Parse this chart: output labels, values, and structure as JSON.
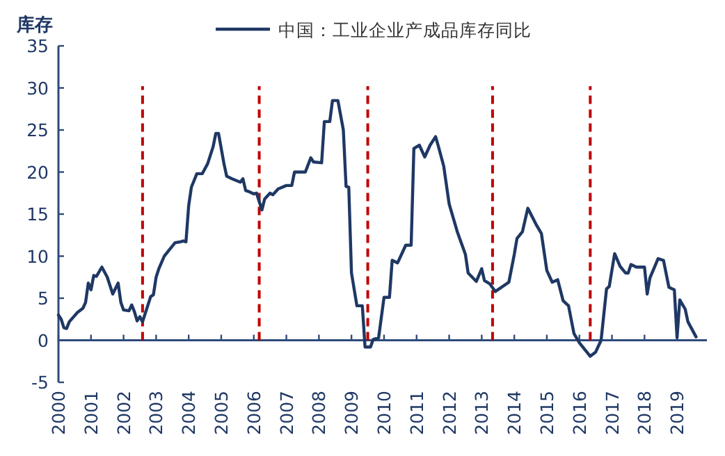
{
  "chart_data": {
    "type": "line",
    "ylabel": "库存",
    "legend": "top",
    "x": [
      "2000-01",
      "2000-02",
      "2000-03",
      "2000-04",
      "2000-05",
      "2000-08",
      "2000-10",
      "2000-11",
      "2000-12",
      "2001-01",
      "2001-02",
      "2001-03",
      "2001-05",
      "2001-07",
      "2001-08",
      "2001-09",
      "2001-11",
      "2001-12",
      "2002-01",
      "2002-03",
      "2002-04",
      "2002-05",
      "2002-06",
      "2002-07",
      "2002-08",
      "2002-09",
      "2002-11",
      "2002-12",
      "2003-01",
      "2003-02",
      "2003-04",
      "2003-05",
      "2003-07",
      "2003-08",
      "2003-10",
      "2003-11",
      "2003-12",
      "2004-01",
      "2004-02",
      "2004-04",
      "2004-06",
      "2004-08",
      "2004-10",
      "2004-11",
      "2004-12",
      "2005-02",
      "2005-03",
      "2005-05",
      "2005-08",
      "2005-09",
      "2005-10",
      "2005-11",
      "2006-01",
      "2006-02",
      "2006-04",
      "2006-05",
      "2006-07",
      "2006-08",
      "2006-10",
      "2007-01",
      "2007-03",
      "2007-04",
      "2007-08",
      "2007-10",
      "2007-11",
      "2008-02",
      "2008-03",
      "2008-05",
      "2008-06",
      "2008-08",
      "2008-10",
      "2008-11",
      "2008-12",
      "2009-01",
      "2009-03",
      "2009-05",
      "2009-06",
      "2009-08",
      "2009-09",
      "2009-11",
      "2010-01",
      "2010-03",
      "2010-04",
      "2010-06",
      "2010-09",
      "2010-11",
      "2010-12",
      "2011-02",
      "2011-04",
      "2011-06",
      "2011-08",
      "2011-09",
      "2011-11",
      "2012-01",
      "2012-04",
      "2012-07",
      "2012-08",
      "2012-11",
      "2013-01",
      "2013-02",
      "2013-04",
      "2013-06",
      "2013-11",
      "2014-01",
      "2014-02",
      "2014-04",
      "2014-06",
      "2014-09",
      "2014-11",
      "2015-01",
      "2015-03",
      "2015-05",
      "2015-07",
      "2015-09",
      "2015-11",
      "2016-01",
      "2016-03",
      "2016-05",
      "2016-07",
      "2016-09",
      "2016-11",
      "2016-12",
      "2017-02",
      "2017-04",
      "2017-06",
      "2017-07",
      "2017-08",
      "2017-10",
      "2018-01",
      "2018-02",
      "2018-03",
      "2018-06",
      "2018-08",
      "2018-10",
      "2018-12",
      "2019-01",
      "2019-02",
      "2019-04",
      "2019-05",
      "2019-08"
    ],
    "series": [
      {
        "name": "中国：工业企业产成品库存同比",
        "color": "#1f3864",
        "values": [
          3.0,
          2.5,
          1.5,
          1.4,
          2.2,
          3.3,
          3.8,
          4.5,
          6.8,
          6.0,
          7.7,
          7.6,
          8.7,
          7.5,
          6.5,
          5.5,
          6.8,
          4.5,
          3.6,
          3.5,
          4.2,
          3.4,
          2.3,
          2.8,
          2.2,
          3.2,
          5.2,
          5.4,
          7.5,
          8.5,
          10.0,
          10.4,
          11.2,
          11.6,
          11.7,
          11.8,
          11.7,
          16.0,
          18.2,
          19.8,
          19.8,
          21.0,
          23.0,
          24.6,
          24.6,
          21.0,
          19.5,
          19.2,
          18.8,
          19.2,
          17.8,
          17.7,
          17.4,
          17.5,
          15.5,
          16.8,
          17.5,
          17.3,
          18.0,
          18.4,
          18.4,
          20.0,
          20.0,
          21.7,
          21.2,
          21.1,
          26.0,
          26.0,
          28.5,
          28.5,
          25.0,
          18.3,
          18.2,
          8.0,
          4.1,
          4.1,
          -0.8,
          -0.8,
          0.1,
          0.3,
          5.1,
          5.1,
          9.5,
          9.2,
          11.3,
          11.3,
          22.8,
          23.2,
          21.8,
          23.2,
          24.2,
          23.1,
          20.7,
          16.2,
          12.9,
          10.2,
          8.0,
          7.0,
          8.5,
          7.1,
          6.7,
          5.8,
          6.9,
          10.2,
          12.1,
          12.9,
          15.7,
          13.8,
          12.7,
          8.3,
          6.9,
          7.2,
          4.7,
          4.1,
          0.8,
          -0.3,
          -1.1,
          -1.9,
          -1.4,
          0.0,
          6.1,
          6.4,
          10.3,
          8.8,
          8.0,
          8.0,
          9.0,
          8.7,
          8.7,
          5.5,
          7.4,
          9.7,
          9.5,
          6.3,
          6.0,
          0.3,
          4.8,
          3.7,
          2.2,
          0.4
        ]
      }
    ],
    "xlim": [
      "2000-01",
      "2019-12"
    ],
    "xticks": [
      "2000",
      "2001",
      "2002",
      "2003",
      "2004",
      "2005",
      "2006",
      "2007",
      "2008",
      "2009",
      "2010",
      "2011",
      "2012",
      "2013",
      "2014",
      "2015",
      "2016",
      "2017",
      "2018",
      "2019"
    ],
    "ylim": [
      -5,
      35
    ],
    "yticks": [
      -5,
      0,
      5,
      10,
      15,
      20,
      25,
      30,
      35
    ],
    "ref_lines": [
      {
        "axis": "y",
        "value": 0,
        "color": "#2e4a7a",
        "line_style": "solid"
      },
      {
        "axis": "x",
        "value": "2002-08",
        "color": "#c00000",
        "line_style": "dashed"
      },
      {
        "axis": "x",
        "value": "2006-03",
        "color": "#c00000",
        "line_style": "dashed"
      },
      {
        "axis": "x",
        "value": "2009-07",
        "color": "#c00000",
        "line_style": "dashed"
      },
      {
        "axis": "x",
        "value": "2013-05",
        "color": "#c00000",
        "line_style": "dashed"
      },
      {
        "axis": "x",
        "value": "2016-05",
        "color": "#c00000",
        "line_style": "dashed"
      }
    ],
    "grid": false,
    "marker": "none",
    "line_style": "solid"
  }
}
